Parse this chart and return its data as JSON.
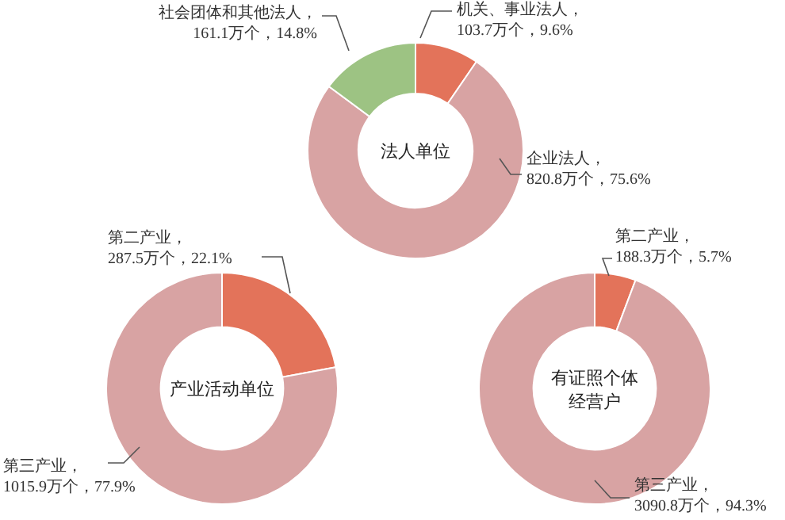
{
  "chart_data": [
    {
      "type": "donut",
      "title": "法人单位",
      "categories": [
        "机关、事业法人",
        "企业法人",
        "社会团体和其他法人"
      ],
      "values": [
        103.7,
        820.8,
        161.1
      ],
      "colors": [
        "#e3735a",
        "#d8a3a3",
        "#9dc383"
      ],
      "value_labels": [
        "，103.7万个，9.6%",
        "，820.8万个，75.6%",
        "，161.1万个，14.8%"
      ]
    },
    {
      "type": "donut",
      "title": "产业活动单位",
      "categories": [
        "第二产业",
        "第三产业"
      ],
      "values": [
        287.5,
        1015.9
      ],
      "colors": [
        "#e3735a",
        "#d8a3a3"
      ],
      "value_labels": [
        "，287.5万个，22.1%",
        "，1015.9万个，77.9%"
      ]
    },
    {
      "type": "donut",
      "title": "有证照个体经营户",
      "categories": [
        "第二产业",
        "第三产业"
      ],
      "values": [
        188.3,
        3090.8
      ],
      "colors": [
        "#e3735a",
        "#d8a3a3"
      ],
      "value_labels": [
        "，188.3万个，5.7%",
        "，3090.8万个，94.3%"
      ]
    }
  ]
}
